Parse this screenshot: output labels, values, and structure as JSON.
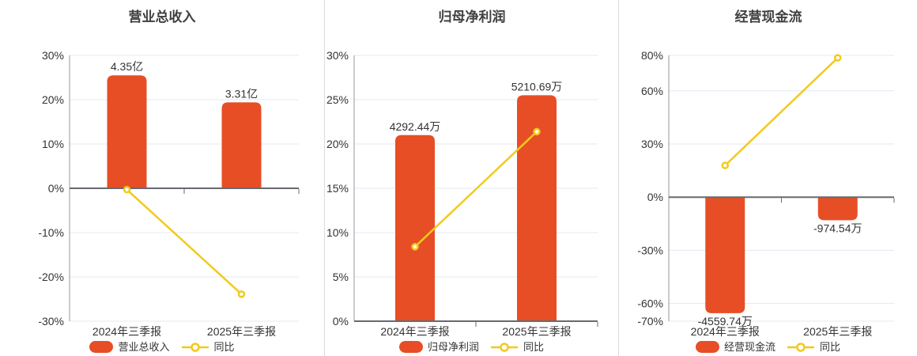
{
  "colors": {
    "bar": "#e74e26",
    "line": "#f3c91c",
    "grid": "#e3e8f2",
    "zero_axis": "#666a70",
    "y_axis": "#94989e",
    "divider": "#d9dbe0",
    "title_text": "#404040",
    "label_text": "#333333",
    "background": "#ffffff"
  },
  "chart_data": [
    {
      "type": "bar+line",
      "title": "营业总收入",
      "categories": [
        "2024年三季报",
        "2025年三季报"
      ],
      "bars": {
        "name": "营业总收入",
        "value_labels": [
          "4.35亿",
          "3.31亿"
        ],
        "values": [
          4.35,
          3.31
        ],
        "unit": "亿",
        "plotted_pct": [
          25.5,
          19.4
        ]
      },
      "line": {
        "name": "同比",
        "values_pct": [
          -0.3,
          -23.9
        ]
      },
      "y_axis": {
        "min": -30,
        "max": 30,
        "ticks": [
          30,
          20,
          10,
          0,
          -10,
          -20,
          -30
        ],
        "tick_labels": [
          "30%",
          "20%",
          "10%",
          "0%",
          "-10%",
          "-20%",
          "-30%"
        ]
      },
      "legend_position": "bottom",
      "grid": true
    },
    {
      "type": "bar+line",
      "title": "归母净利润",
      "categories": [
        "2024年三季报",
        "2025年三季报"
      ],
      "bars": {
        "name": "归母净利润",
        "value_labels": [
          "4292.44万",
          "5210.69万"
        ],
        "values": [
          4292.44,
          5210.69
        ],
        "unit": "万",
        "plotted_pct": [
          21.0,
          25.5
        ]
      },
      "line": {
        "name": "同比",
        "values_pct": [
          8.4,
          21.39
        ]
      },
      "y_axis": {
        "min": 0,
        "max": 30,
        "ticks": [
          30,
          25,
          20,
          15,
          10,
          5,
          0
        ],
        "tick_labels": [
          "30%",
          "25%",
          "20%",
          "15%",
          "10%",
          "5%",
          "0%"
        ]
      },
      "legend_position": "bottom",
      "grid": true
    },
    {
      "type": "bar+line",
      "title": "经营现金流",
      "categories": [
        "2024年三季报",
        "2025年三季报"
      ],
      "bars": {
        "name": "经营现金流",
        "value_labels": [
          "-4559.74万",
          "-974.54万"
        ],
        "values": [
          -4559.74,
          -974.54
        ],
        "unit": "万",
        "plotted_pct": [
          -65.5,
          -13.0
        ]
      },
      "line": {
        "name": "同比",
        "values_pct": [
          17.9,
          78.63
        ]
      },
      "y_axis": {
        "min": -70,
        "max": 80,
        "ticks": [
          80,
          60,
          30,
          0,
          -30,
          -60,
          -70
        ],
        "tick_labels": [
          "80%",
          "60%",
          "30%",
          "0%",
          "-30%",
          "-60%",
          "-70%"
        ]
      },
      "legend_position": "bottom",
      "grid": true
    }
  ]
}
